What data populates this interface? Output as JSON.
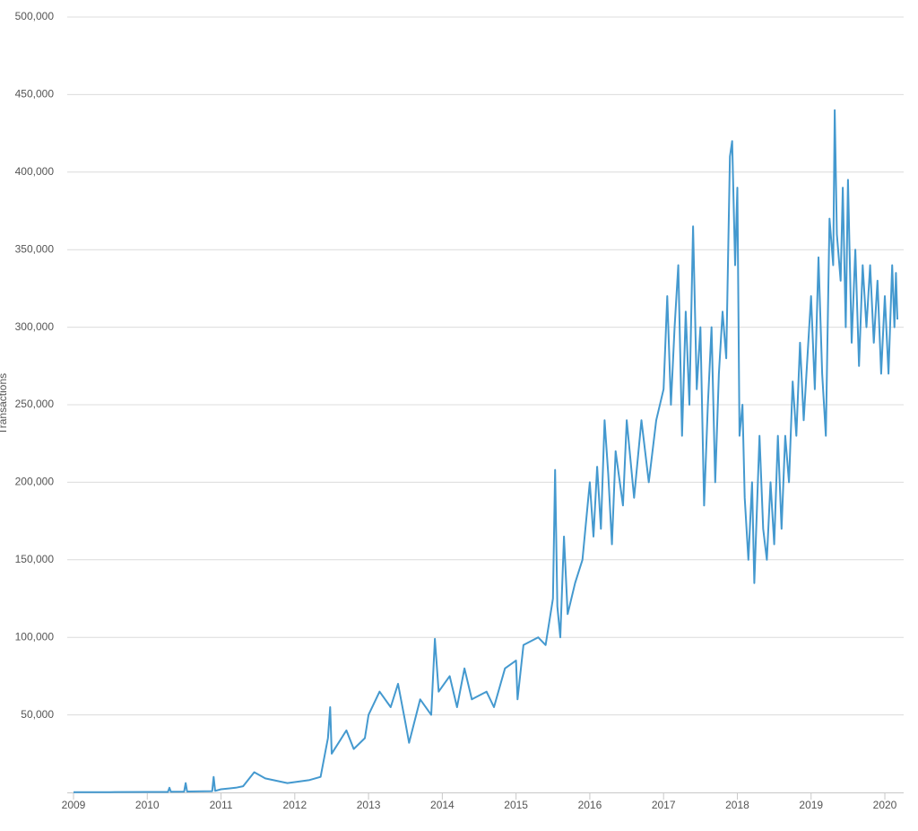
{
  "chart_data": {
    "type": "line",
    "y_label": "Transactions",
    "x": [
      2009.0,
      2009.5,
      2010.0,
      2010.28,
      2010.3,
      2010.32,
      2010.5,
      2010.52,
      2010.54,
      2010.88,
      2010.9,
      2010.92,
      2011.0,
      2011.2,
      2011.3,
      2011.45,
      2011.6,
      2011.9,
      2012.2,
      2012.35,
      2012.45,
      2012.48,
      2012.5,
      2012.7,
      2012.8,
      2012.95,
      2013.0,
      2013.15,
      2013.3,
      2013.4,
      2013.5,
      2013.55,
      2013.7,
      2013.85,
      2013.9,
      2013.95,
      2014.1,
      2014.2,
      2014.3,
      2014.4,
      2014.6,
      2014.7,
      2014.85,
      2015.0,
      2015.02,
      2015.1,
      2015.3,
      2015.4,
      2015.5,
      2015.53,
      2015.56,
      2015.6,
      2015.65,
      2015.7,
      2015.8,
      2015.9,
      2016.0,
      2016.05,
      2016.1,
      2016.15,
      2016.2,
      2016.25,
      2016.3,
      2016.35,
      2016.45,
      2016.5,
      2016.6,
      2016.7,
      2016.8,
      2016.9,
      2017.0,
      2017.05,
      2017.1,
      2017.15,
      2017.2,
      2017.25,
      2017.3,
      2017.35,
      2017.4,
      2017.45,
      2017.5,
      2017.55,
      2017.6,
      2017.65,
      2017.7,
      2017.75,
      2017.8,
      2017.85,
      2017.9,
      2017.93,
      2017.97,
      2018.0,
      2018.03,
      2018.07,
      2018.1,
      2018.15,
      2018.2,
      2018.23,
      2018.3,
      2018.35,
      2018.4,
      2018.45,
      2018.5,
      2018.55,
      2018.6,
      2018.65,
      2018.7,
      2018.75,
      2018.8,
      2018.85,
      2018.9,
      2018.95,
      2019.0,
      2019.05,
      2019.1,
      2019.15,
      2019.2,
      2019.25,
      2019.3,
      2019.32,
      2019.35,
      2019.4,
      2019.43,
      2019.47,
      2019.5,
      2019.55,
      2019.6,
      2019.65,
      2019.7,
      2019.75,
      2019.8,
      2019.85,
      2019.9,
      2019.95,
      2020.0,
      2020.05,
      2020.1,
      2020.13,
      2020.15,
      2020.17
    ],
    "series": [
      {
        "name": "Transactions",
        "color": "#4499cf",
        "values": [
          100,
          200,
          300,
          300,
          3000,
          400,
          500,
          6000,
          600,
          800,
          10000,
          1000,
          2000,
          3000,
          4000,
          13000,
          9000,
          6000,
          8000,
          10000,
          35000,
          55000,
          25000,
          40000,
          28000,
          35000,
          50000,
          65000,
          55000,
          70000,
          45000,
          32000,
          60000,
          50000,
          99000,
          65000,
          75000,
          55000,
          80000,
          60000,
          65000,
          55000,
          80000,
          85000,
          60000,
          95000,
          100000,
          95000,
          125000,
          208000,
          120000,
          100000,
          165000,
          115000,
          135000,
          150000,
          200000,
          165000,
          210000,
          170000,
          240000,
          205000,
          160000,
          220000,
          185000,
          240000,
          190000,
          240000,
          200000,
          240000,
          260000,
          320000,
          250000,
          300000,
          340000,
          230000,
          310000,
          250000,
          365000,
          260000,
          300000,
          185000,
          250000,
          300000,
          200000,
          270000,
          310000,
          280000,
          410000,
          420000,
          340000,
          390000,
          230000,
          250000,
          190000,
          150000,
          200000,
          135000,
          230000,
          170000,
          150000,
          200000,
          160000,
          230000,
          170000,
          230000,
          200000,
          265000,
          230000,
          290000,
          240000,
          280000,
          320000,
          260000,
          345000,
          270000,
          230000,
          370000,
          340000,
          440000,
          360000,
          330000,
          390000,
          300000,
          395000,
          290000,
          350000,
          275000,
          340000,
          300000,
          340000,
          290000,
          330000,
          270000,
          320000,
          270000,
          340000,
          300000,
          335000,
          305000
        ]
      }
    ],
    "xlim": [
      2008.915,
      2020.255
    ],
    "xticks": [
      2009,
      2010,
      2011,
      2012,
      2013,
      2014,
      2015,
      2016,
      2017,
      2018,
      2019,
      2020
    ],
    "ylim": [
      0,
      500000
    ],
    "yticks": [
      {
        "value": 50000,
        "label": "50,000"
      },
      {
        "value": 100000,
        "label": "100,000"
      },
      {
        "value": 150000,
        "label": "150,000"
      },
      {
        "value": 200000,
        "label": "200,000"
      },
      {
        "value": 250000,
        "label": "250,000"
      },
      {
        "value": 300000,
        "label": "300,000"
      },
      {
        "value": 350000,
        "label": "350,000"
      },
      {
        "value": 400000,
        "label": "400,000"
      },
      {
        "value": 450000,
        "label": "450,000"
      },
      {
        "value": 500000,
        "label": "500,000"
      }
    ],
    "grid": true
  }
}
